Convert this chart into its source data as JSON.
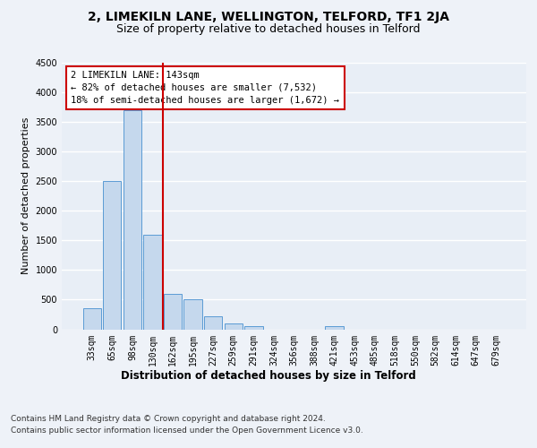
{
  "title": "2, LIMEKILN LANE, WELLINGTON, TELFORD, TF1 2JA",
  "subtitle": "Size of property relative to detached houses in Telford",
  "xlabel": "Distribution of detached houses by size in Telford",
  "ylabel": "Number of detached properties",
  "categories": [
    "33sqm",
    "65sqm",
    "98sqm",
    "130sqm",
    "162sqm",
    "195sqm",
    "227sqm",
    "259sqm",
    "291sqm",
    "324sqm",
    "356sqm",
    "388sqm",
    "421sqm",
    "453sqm",
    "485sqm",
    "518sqm",
    "550sqm",
    "582sqm",
    "614sqm",
    "647sqm",
    "679sqm"
  ],
  "values": [
    350,
    2500,
    3700,
    1600,
    600,
    500,
    220,
    100,
    60,
    0,
    0,
    0,
    50,
    0,
    0,
    0,
    0,
    0,
    0,
    0,
    0
  ],
  "bar_color": "#c5d8ed",
  "bar_edge_color": "#5b9bd5",
  "ylim": [
    0,
    4500
  ],
  "yticks": [
    0,
    500,
    1000,
    1500,
    2000,
    2500,
    3000,
    3500,
    4000,
    4500
  ],
  "vline_color": "#cc0000",
  "annotation_text": "2 LIMEKILN LANE: 143sqm\n← 82% of detached houses are smaller (7,532)\n18% of semi-detached houses are larger (1,672) →",
  "annotation_box_color": "#ffffff",
  "annotation_box_edge": "#cc0000",
  "footer_line1": "Contains HM Land Registry data © Crown copyright and database right 2024.",
  "footer_line2": "Contains public sector information licensed under the Open Government Licence v3.0.",
  "background_color": "#eef2f8",
  "plot_background": "#e8eef6",
  "grid_color": "#ffffff",
  "title_fontsize": 10,
  "subtitle_fontsize": 9,
  "tick_fontsize": 7,
  "ylabel_fontsize": 8,
  "xlabel_fontsize": 8.5,
  "footer_fontsize": 6.5
}
